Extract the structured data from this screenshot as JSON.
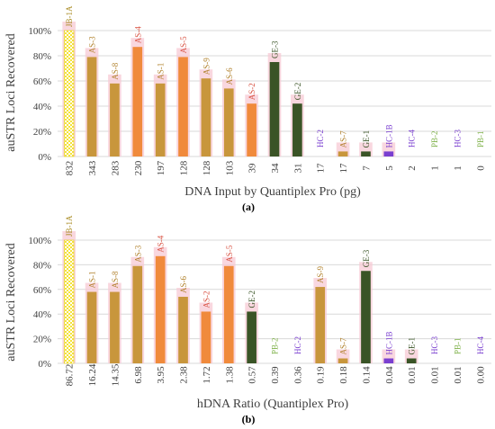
{
  "chart_data": [
    {
      "type": "bar",
      "panel_label": "(a)",
      "xlabel": "DNA Input by Quantiplex Pro (pg)",
      "ylabel": "auSTR Loci Recovered",
      "ylim": [
        0,
        100
      ],
      "y_ticks": [
        "0%",
        "20%",
        "40%",
        "60%",
        "80%",
        "100%"
      ],
      "grid": true,
      "categories": [
        "832",
        "343",
        "283",
        "230",
        "197",
        "128",
        "128",
        "103",
        "39",
        "34",
        "31",
        "17",
        "17",
        "7",
        "5",
        "2",
        "1",
        "1",
        "0"
      ],
      "bar_labels": [
        "JB-1A",
        "AS-3",
        "AS-8",
        "AS-4",
        "AS-1",
        "AS-5",
        "AS-9",
        "AS-6",
        "AS-2",
        "GE-3",
        "GE-2",
        "HC-2",
        "AS-7",
        "GE-1",
        "HC-1B",
        "HC-4",
        "PB-2",
        "HC-3",
        "PB-1"
      ],
      "values": [
        100,
        79,
        58,
        87,
        58,
        79,
        62,
        54,
        42,
        75,
        42,
        0,
        4,
        4,
        4,
        0,
        0,
        0,
        0
      ]
    },
    {
      "type": "bar",
      "panel_label": "(b)",
      "xlabel": "hDNA Ratio (Quantiplex Pro)",
      "ylabel": "auSTR Loci Recovered",
      "ylim": [
        0,
        100
      ],
      "y_ticks": [
        "0%",
        "20%",
        "40%",
        "60%",
        "80%",
        "100%"
      ],
      "grid": true,
      "categories": [
        "86.72",
        "16.24",
        "14.35",
        "6.98",
        "3.95",
        "2.38",
        "1.72",
        "1.38",
        "0.57",
        "0.39",
        "0.36",
        "0.19",
        "0.18",
        "0.14",
        "0.04",
        "0.01",
        "0.01",
        "0.01",
        "0.00"
      ],
      "bar_labels": [
        "JB-1A",
        "AS-1",
        "AS-8",
        "AS-3",
        "AS-4",
        "AS-6",
        "AS-2",
        "AS-5",
        "GE-2",
        "PB-2",
        "HC-2",
        "AS-9",
        "AS-7",
        "GE-3",
        "HC-1B",
        "GE-1",
        "HC-3",
        "PB-1",
        "HC-4"
      ],
      "values": [
        100,
        58,
        58,
        79,
        87,
        54,
        42,
        79,
        42,
        0,
        0,
        62,
        4,
        75,
        4,
        4,
        0,
        0,
        0
      ]
    }
  ],
  "styles": {
    "colors": {
      "gold": "#C8963C",
      "orange": "#F08A3C",
      "pink_shadow": "#F7C9D4",
      "green": "#3A5426",
      "light_green": "#7FB24A",
      "purple": "#7A3FD0",
      "checker_yellow": "#F4E23A",
      "label_gold": "#B0802A",
      "label_red": "#D85040",
      "label_green": "#3A5426",
      "label_purple": "#7A3FD0",
      "label_lgreen": "#7FB24A",
      "label_jb": "#A88A20",
      "grid": "#D9D9D9",
      "axis_text": "#404040"
    },
    "bar_styles": {
      "JB-1A": "checker",
      "AS-3": "gold",
      "AS-8": "gold",
      "AS-4": "orange",
      "AS-1": "gold",
      "AS-5": "orange",
      "AS-9": "gold",
      "AS-6": "gold",
      "AS-2": "orange",
      "AS-7": "gold",
      "GE-3": "green",
      "GE-2": "green",
      "GE-1": "green",
      "HC-1B": "purple",
      "HC-2": "purple",
      "HC-3": "purple",
      "HC-4": "purple",
      "PB-1": "lgreen",
      "PB-2": "lgreen"
    }
  }
}
